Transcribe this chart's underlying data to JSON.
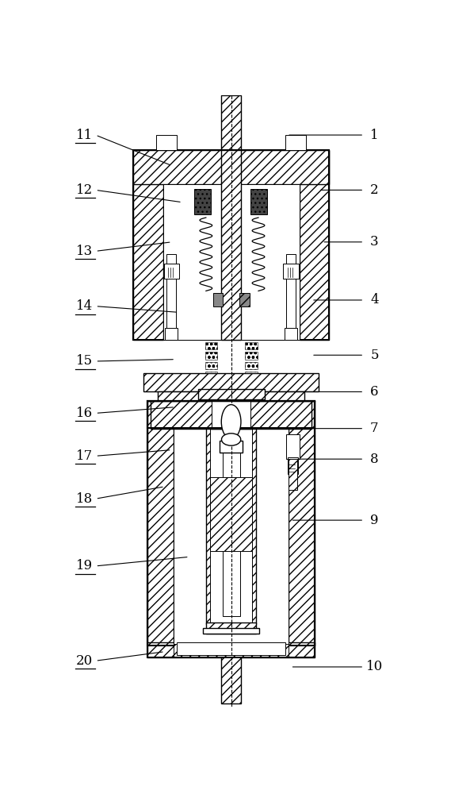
{
  "bg_color": "#ffffff",
  "line_color": "#000000",
  "fig_width": 5.69,
  "fig_height": 10.0,
  "dpi": 100,
  "right_labels": {
    "1": [
      0.91,
      0.935,
      0.66,
      0.935
    ],
    "2": [
      0.91,
      0.845,
      0.75,
      0.845
    ],
    "3": [
      0.91,
      0.76,
      0.76,
      0.76
    ],
    "4": [
      0.91,
      0.665,
      0.73,
      0.665
    ],
    "5": [
      0.91,
      0.575,
      0.73,
      0.575
    ],
    "6": [
      0.91,
      0.515,
      0.68,
      0.515
    ],
    "7": [
      0.91,
      0.455,
      0.725,
      0.455
    ],
    "8": [
      0.91,
      0.405,
      0.685,
      0.405
    ],
    "9": [
      0.91,
      0.305,
      0.67,
      0.305
    ],
    "10": [
      0.91,
      0.065,
      0.67,
      0.065
    ]
  },
  "left_labels": {
    "11": [
      0.08,
      0.935,
      0.33,
      0.885
    ],
    "12": [
      0.08,
      0.845,
      0.36,
      0.825
    ],
    "13": [
      0.08,
      0.745,
      0.33,
      0.76
    ],
    "14": [
      0.08,
      0.655,
      0.35,
      0.645
    ],
    "15": [
      0.08,
      0.565,
      0.34,
      0.568
    ],
    "16": [
      0.08,
      0.48,
      0.34,
      0.49
    ],
    "17": [
      0.08,
      0.41,
      0.33,
      0.42
    ],
    "18": [
      0.08,
      0.34,
      0.31,
      0.36
    ],
    "19": [
      0.08,
      0.23,
      0.38,
      0.245
    ],
    "20": [
      0.08,
      0.075,
      0.31,
      0.09
    ]
  }
}
